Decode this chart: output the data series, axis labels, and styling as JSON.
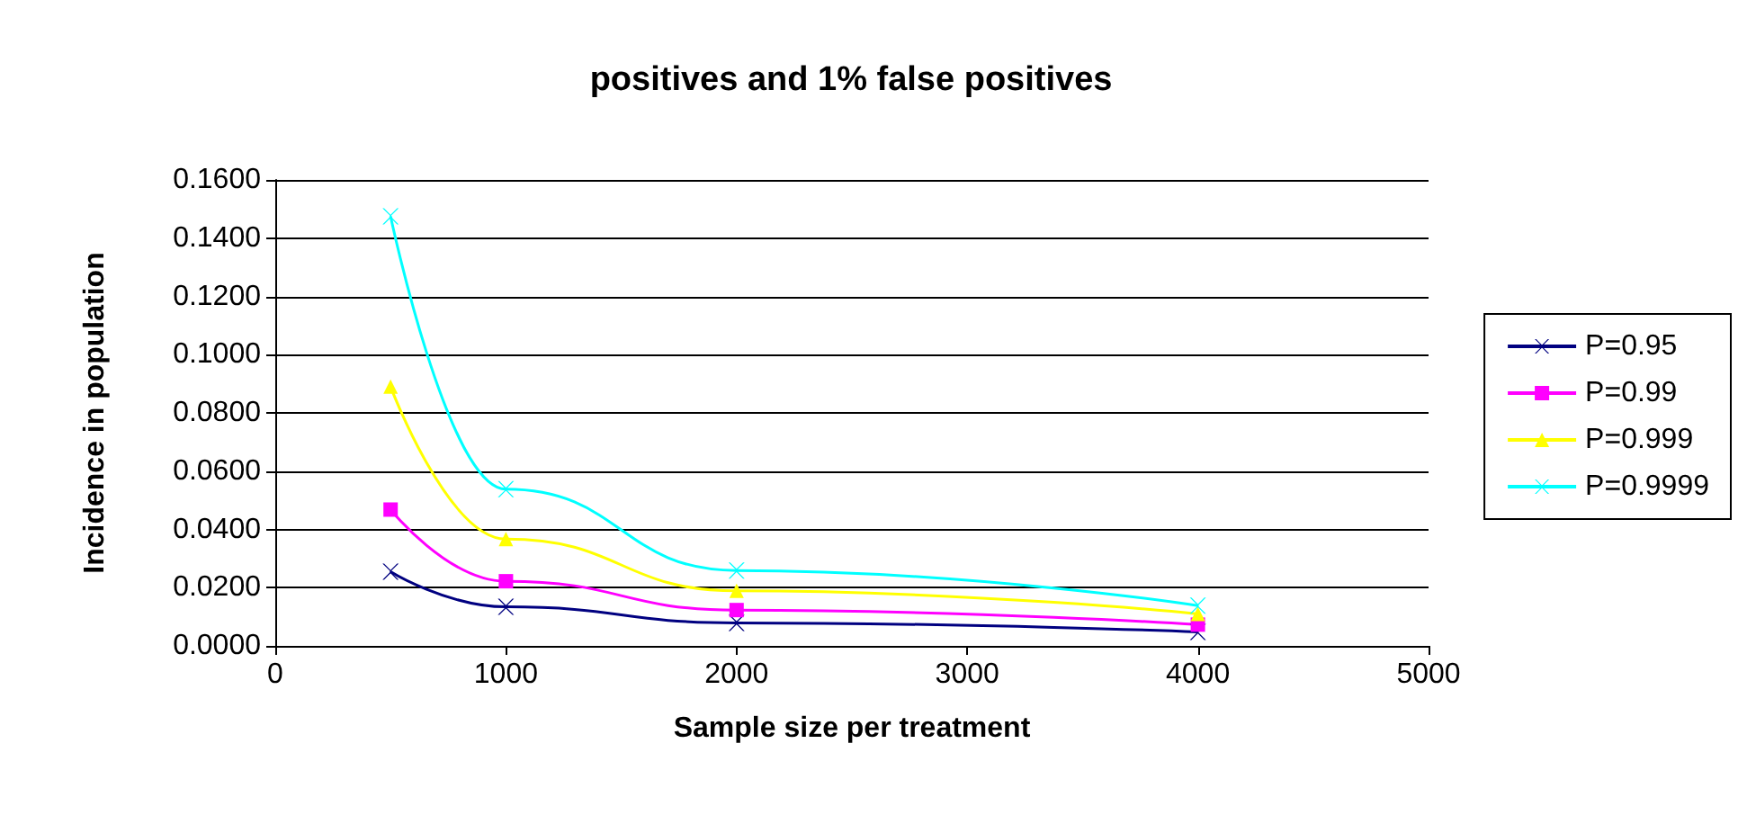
{
  "chart_data": {
    "type": "line",
    "title": "positives and 1% false positives",
    "xlabel": "Sample size per treatment",
    "ylabel": "Incidence in population",
    "x": [
      500,
      1000,
      2000,
      4000
    ],
    "series": [
      {
        "name": "P=0.95",
        "color": "#000080",
        "marker": "cross",
        "values": [
          0.0255,
          0.0134,
          0.0079,
          0.0048
        ]
      },
      {
        "name": "P=0.99",
        "color": "#ff00ff",
        "marker": "square",
        "values": [
          0.0468,
          0.0222,
          0.0123,
          0.0073
        ]
      },
      {
        "name": "P=0.999",
        "color": "#ffff00",
        "marker": "triangle",
        "values": [
          0.089,
          0.0367,
          0.0189,
          0.011
        ]
      },
      {
        "name": "P=0.9999",
        "color": "#00ffff",
        "marker": "cross",
        "values": [
          0.1475,
          0.0538,
          0.0259,
          0.0138
        ]
      }
    ],
    "xlim": [
      0,
      5000
    ],
    "xticks": [
      0,
      1000,
      2000,
      3000,
      4000,
      5000
    ],
    "ylim": [
      0,
      0.16
    ],
    "yticks": [
      {
        "value": 0,
        "label": "0.0000"
      },
      {
        "value": 0.02,
        "label": "0.0200"
      },
      {
        "value": 0.04,
        "label": "0.0400"
      },
      {
        "value": 0.06,
        "label": "0.0600"
      },
      {
        "value": 0.08,
        "label": "0.0800"
      },
      {
        "value": 0.1,
        "label": "0.1000"
      },
      {
        "value": 0.12,
        "label": "0.1200"
      },
      {
        "value": 0.14,
        "label": "0.1400"
      },
      {
        "value": 0.16,
        "label": "0.1600"
      }
    ],
    "grid": "y",
    "legend": "right"
  }
}
